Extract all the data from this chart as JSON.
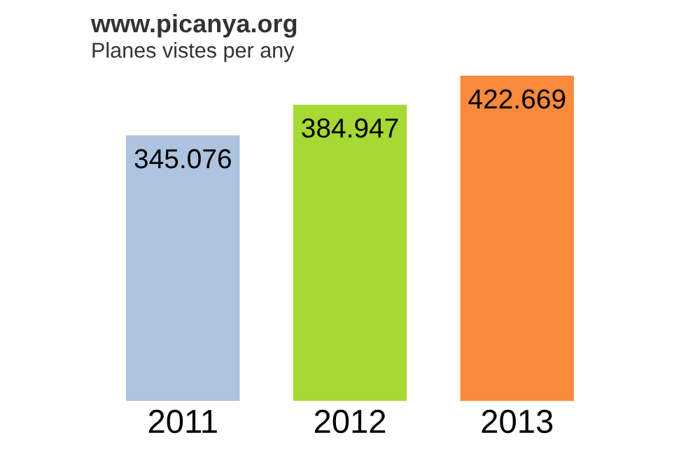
{
  "chart_data": {
    "type": "bar",
    "title": "www.picanya.org",
    "subtitle": "Planes vistes per any",
    "categories": [
      "2011",
      "2012",
      "2013"
    ],
    "values": [
      345076,
      384947,
      422669
    ],
    "value_labels": [
      "345.076",
      "384.947",
      "422.669"
    ],
    "colors": [
      "#adc3e0",
      "#a6d934",
      "#f98a3c"
    ],
    "grid": false,
    "legend": false
  }
}
